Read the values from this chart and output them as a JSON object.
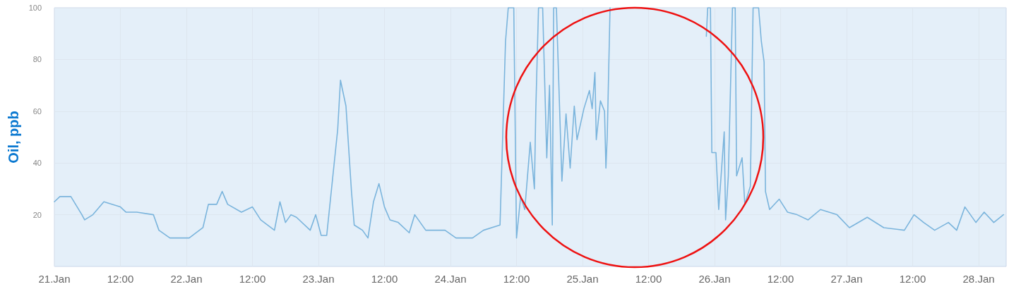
{
  "chart_data": {
    "type": "line",
    "ylabel": "Oil, ppb",
    "x": [
      "--01-21T00:00",
      "--01-21T01:00",
      "--01-21T03:00",
      "--01-21T05:00",
      "--01-21T05:30",
      "--01-21T07:00",
      "--01-21T09:00",
      "--01-21T12:00",
      "--01-21T13:00",
      "--01-21T15:00",
      "--01-21T18:00",
      "--01-21T19:00",
      "--01-21T21:00",
      "--01-22T00:30",
      "--01-22T03:00",
      "--01-22T04:00",
      "--01-22T05:30",
      "--01-22T06:30",
      "--01-22T07:30",
      "--01-22T10:00",
      "--01-22T12:00",
      "--01-22T13:30",
      "--01-22T16:00",
      "--01-22T17:00",
      "--01-22T18:00",
      "--01-22T19:00",
      "--01-22T20:00",
      "--01-22T22:30",
      "--01-22T23:30",
      "--01-23T00:30",
      "--01-23T01:30",
      "--01-23T03:30",
      "--01-23T04:00",
      "--01-23T05:00",
      "--01-23T06:00",
      "--01-23T06:30",
      "--01-23T08:00",
      "--01-23T09:00",
      "--01-23T10:00",
      "--01-23T11:00",
      "--01-23T12:00",
      "--01-23T13:00",
      "--01-23T14:30",
      "--01-23T16:30",
      "--01-23T17:30",
      "--01-23T19:30",
      "--01-23T23:00",
      "--01-24T01:00",
      "--01-24T04:00",
      "--01-24T06:00",
      "--01-24T09:00",
      "--01-24T10:00",
      "--01-24T10:30",
      "--01-24T11:30",
      "--01-24T12:00",
      "--01-24T12:45",
      "--01-24T13:30",
      "--01-24T14:30",
      "--01-24T15:15",
      "--01-24T15:30",
      "--01-24T16:00",
      "--01-24T16:45",
      "--01-24T17:30",
      "--01-24T18:00",
      "--01-24T18:30",
      "--01-24T18:45",
      "--01-24T19:15",
      "--01-24T20:15",
      "--01-24T21:00",
      "--01-24T21:45",
      "--01-24T22:30",
      "--01-24T23:00",
      "--01-25T00:15",
      "--01-25T01:15",
      "--01-25T01:45",
      "--01-25T02:15",
      "--01-25T02:30",
      "--01-25T03:15",
      "--01-25T04:00",
      "--01-25T04:15",
      "--01-25T04:30",
      "--01-25T05:00",
      "--01-25T12:00",
      "--01-25T22:30",
      "--01-25T22:45",
      "--01-25T23:15",
      "--01-25T23:30",
      "--01-26T00:15",
      "--01-26T00:45",
      "--01-26T01:45",
      "--01-26T02:00",
      "--01-26T02:30",
      "--01-26T03:15",
      "--01-26T03:45",
      "--01-26T04:00",
      "--01-26T05:00",
      "--01-26T05:30",
      "--01-26T06:30",
      "--01-26T07:00",
      "--01-26T08:00",
      "--01-26T08:30",
      "--01-26T09:00",
      "--01-26T09:15",
      "--01-26T10:00",
      "--01-26T11:45",
      "--01-26T13:15",
      "--01-26T15:00",
      "--01-26T17:00",
      "--01-26T19:15",
      "--01-26T22:15",
      "--01-27T00:30",
      "--01-27T03:45",
      "--01-27T06:45",
      "--01-27T10:30",
      "--01-27T12:15",
      "--01-27T14:00",
      "--01-27T16:00",
      "--01-27T18:30",
      "--01-27T20:00",
      "--01-27T21:30",
      "--01-27T23:30",
      "--01-28T01:00",
      "--01-28T02:45",
      "--01-28T04:30"
    ],
    "series": [
      {
        "color": "#7ab4dc",
        "values": [
          25,
          27,
          27,
          20,
          18,
          20,
          25,
          23,
          21,
          21,
          20,
          14,
          11,
          11,
          15,
          24,
          24,
          29,
          24,
          21,
          23,
          18,
          14,
          25,
          17,
          20,
          19,
          14,
          20,
          12,
          12,
          53,
          72,
          62,
          29,
          16,
          14,
          11,
          25,
          32,
          23,
          18,
          17,
          13,
          20,
          14,
          14,
          11,
          11,
          14,
          16,
          87,
          100,
          100,
          11,
          27,
          22,
          48,
          30,
          60,
          100,
          100,
          42,
          70,
          16,
          100,
          100,
          33,
          59,
          38,
          62,
          49,
          61,
          68,
          61,
          75,
          49,
          64,
          60,
          38,
          51,
          100,
          null,
          89,
          100,
          100,
          44,
          44,
          22,
          52,
          18,
          35,
          100,
          100,
          35,
          42,
          24,
          31,
          100,
          100,
          87,
          79,
          29,
          22,
          26,
          21,
          20,
          18,
          22,
          20,
          15,
          19,
          15,
          14,
          20,
          17,
          14,
          17,
          14,
          23,
          17,
          21,
          17,
          20
        ]
      }
    ],
    "xlim": [
      "--01-21T00:00",
      "--01-28T05:00"
    ],
    "xticks": [
      {
        "value": "--01-21T00:00",
        "label": "21.Jan"
      },
      {
        "value": "--01-21T12:00",
        "label": "12:00"
      },
      {
        "value": "--01-22T00:00",
        "label": "22.Jan"
      },
      {
        "value": "--01-22T12:00",
        "label": "12:00"
      },
      {
        "value": "--01-23T00:00",
        "label": "23.Jan"
      },
      {
        "value": "--01-23T12:00",
        "label": "12:00"
      },
      {
        "value": "--01-24T00:00",
        "label": "24.Jan"
      },
      {
        "value": "--01-24T12:00",
        "label": "12:00"
      },
      {
        "value": "--01-25T00:00",
        "label": "25.Jan"
      },
      {
        "value": "--01-25T12:00",
        "label": "12:00"
      },
      {
        "value": "--01-26T00:00",
        "label": "26.Jan"
      },
      {
        "value": "--01-26T12:00",
        "label": "12:00"
      },
      {
        "value": "--01-27T00:00",
        "label": "27.Jan"
      },
      {
        "value": "--01-27T12:00",
        "label": "12:00"
      },
      {
        "value": "--01-28T00:00",
        "label": "28.Jan"
      }
    ],
    "ylim": [
      0,
      100
    ],
    "yticks": [
      20,
      40,
      60,
      80,
      100
    ],
    "grid": true,
    "marker": "none",
    "line_style": "solid"
  }
}
